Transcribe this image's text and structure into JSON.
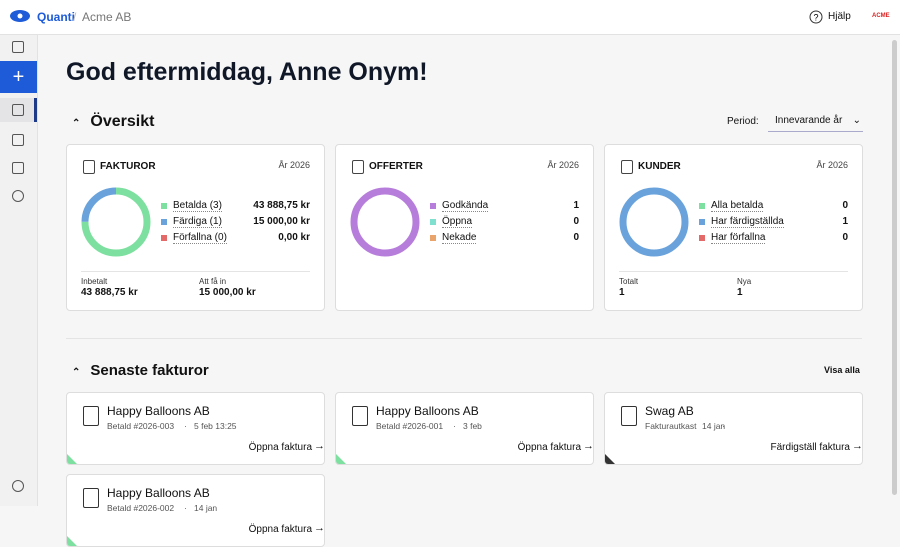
{
  "topbar": {
    "brand": "Quanti",
    "company": "Acme AB",
    "help": "Hjälp",
    "logo": "ACME"
  },
  "greeting": "God eftermiddag, Anne Onym!",
  "overview": {
    "title": "Översikt",
    "period_label": "Period:",
    "period": "Innevarande år",
    "cards": [
      {
        "title": "FAKTUROR",
        "year": "År 2026",
        "items": [
          {
            "label": "Betalda (3)",
            "count": 3,
            "value": "43 888,75 kr",
            "color": "#7ee0a0"
          },
          {
            "label": "Färdiga (1)",
            "count": 1,
            "value": "15 000,00 kr",
            "color": "#6aa3dc"
          },
          {
            "label": "Förfallna (0)",
            "count": 0,
            "value": "0,00 kr",
            "color": "#e46a6a"
          }
        ],
        "footer": [
          {
            "label": "Inbetalt",
            "value": "43 888,75 kr"
          },
          {
            "label": "Att få in",
            "value": "15 000,00 kr"
          }
        ]
      },
      {
        "title": "OFFERTER",
        "year": "År 2026",
        "items": [
          {
            "label": "Godkända",
            "value": 1,
            "color": "#b77ddb"
          },
          {
            "label": "Öppna",
            "value": 0,
            "color": "#7fe0d0"
          },
          {
            "label": "Nekade",
            "value": 0,
            "color": "#e8a46a"
          }
        ],
        "footer": []
      },
      {
        "title": "KUNDER",
        "year": "År 2026",
        "items": [
          {
            "label": "Alla betalda",
            "value": 0,
            "color": "#7ee0a0"
          },
          {
            "label": "Har färdigställda",
            "value": 1,
            "color": "#6aa3dc"
          },
          {
            "label": "Har förfallna",
            "value": 0,
            "color": "#e46a6a"
          }
        ],
        "footer": [
          {
            "label": "Totalt",
            "value": "1"
          },
          {
            "label": "Nya",
            "value": "1"
          }
        ]
      }
    ]
  },
  "recent": {
    "title": "Senaste fakturor",
    "view_all": "Visa alla",
    "invoices": [
      {
        "customer": "Happy Balloons AB",
        "status": "Betald #2026-003",
        "date": "5 feb 13:25",
        "action": "Öppna faktura",
        "corner_color": "#7ee0a0"
      },
      {
        "customer": "Happy Balloons AB",
        "status": "Betald #2026-001",
        "date": "3 feb",
        "action": "Öppna faktura",
        "corner_color": "#7ee0a0"
      },
      {
        "customer": "Swag AB",
        "status": "Fakturautkast",
        "date": "14 jan",
        "action": "Färdigställ faktura",
        "corner_color": "#333"
      },
      {
        "customer": "Happy Balloons AB",
        "status": "Betald #2026-002",
        "date": "14 jan",
        "action": "Öppna faktura",
        "corner_color": "#7ee0a0"
      }
    ]
  }
}
